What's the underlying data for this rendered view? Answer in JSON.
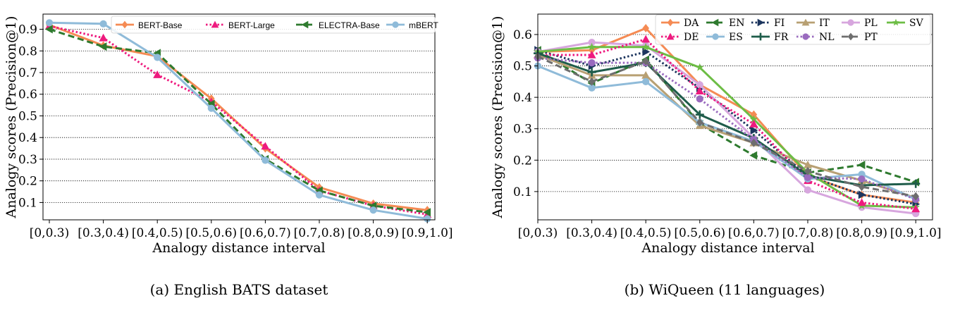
{
  "chart_data": [
    {
      "id": "a",
      "type": "line",
      "caption": "(a) English BATS dataset",
      "xlabel": "Analogy distance interval",
      "ylabel": "Analogy scores (Precision@1)",
      "categories": [
        "[0,0.3)",
        "[0.3,0.4)",
        "[0.4,0.5)",
        "[0.5,0.6)",
        "[0.6,0.7)",
        "[0.7,0.8)",
        "[0.8,0.9)",
        "[0.9,1.0]"
      ],
      "ylim": [
        0.02,
        0.97
      ],
      "yticks": [
        0.1,
        0.2,
        0.3,
        0.4,
        0.5,
        0.6,
        0.7,
        0.8,
        0.9
      ],
      "grid": "horizontal dotted",
      "legend_position": "top, 4 columns",
      "series": [
        {
          "name": "BERT-Base",
          "color": "#f58b54",
          "dash": "solid",
          "marker": "diamond",
          "values": [
            0.92,
            0.825,
            0.775,
            0.58,
            0.35,
            0.17,
            0.095,
            0.065
          ]
        },
        {
          "name": "BERT-Large",
          "color": "#ee1a7e",
          "dash": "dotted",
          "marker": "triangle-up",
          "values": [
            0.915,
            0.86,
            0.69,
            0.565,
            0.36,
            0.155,
            0.085,
            0.045
          ]
        },
        {
          "name": "ELECTRA-Base",
          "color": "#2e7a2e",
          "dash": "dashed",
          "marker": "triangle-left",
          "values": [
            0.9,
            0.82,
            0.79,
            0.555,
            0.3,
            0.155,
            0.085,
            0.055
          ]
        },
        {
          "name": "mBERT",
          "color": "#8fbbd9",
          "dash": "solid",
          "marker": "circle",
          "values": [
            0.93,
            0.925,
            0.77,
            0.535,
            0.295,
            0.135,
            0.065,
            0.025
          ]
        }
      ]
    },
    {
      "id": "b",
      "type": "line",
      "caption": "(b) WiQueen (11 languages)",
      "xlabel": "Analogy distance interval",
      "ylabel": "Analogy scores (Precision@1)",
      "categories": [
        "[0,0.3)",
        "[0.3,0.4)",
        "[0.4,0.5)",
        "[0.5,0.6)",
        "[0.6,0.7)",
        "[0.7,0.8)",
        "[0.8,0.9)",
        "[0.9,1.0]"
      ],
      "ylim": [
        0.01,
        0.665
      ],
      "yticks": [
        0.1,
        0.2,
        0.3,
        0.4,
        0.5,
        0.6
      ],
      "grid": "horizontal dotted",
      "legend_position": "top-right, 6 columns",
      "series": [
        {
          "name": "DA",
          "color": "#f58b54",
          "dash": "solid",
          "marker": "diamond",
          "values": [
            0.545,
            0.55,
            0.62,
            0.44,
            0.345,
            0.15,
            0.09,
            0.065
          ]
        },
        {
          "name": "EN",
          "color": "#2e7a2e",
          "dash": "dashed",
          "marker": "triangle-left",
          "values": [
            0.55,
            0.445,
            0.52,
            0.315,
            0.215,
            0.16,
            0.185,
            0.13
          ]
        },
        {
          "name": "FI",
          "color": "#1c355e",
          "dash": "dotted",
          "marker": "triangle-right",
          "values": [
            0.55,
            0.5,
            0.545,
            0.43,
            0.295,
            0.15,
            0.09,
            0.06
          ]
        },
        {
          "name": "IT",
          "color": "#b8a073",
          "dash": "solid",
          "marker": "triangle-up",
          "values": [
            0.535,
            0.47,
            0.47,
            0.31,
            0.255,
            0.185,
            0.135,
            0.08
          ]
        },
        {
          "name": "PL",
          "color": "#d7a6de",
          "dash": "solid",
          "marker": "circle",
          "values": [
            0.545,
            0.575,
            0.565,
            0.44,
            0.27,
            0.105,
            0.05,
            0.03
          ]
        },
        {
          "name": "SV",
          "color": "#6dbd45",
          "dash": "solid",
          "marker": "star",
          "values": [
            0.545,
            0.56,
            0.56,
            0.495,
            0.33,
            0.16,
            0.055,
            0.05
          ]
        },
        {
          "name": "DE",
          "color": "#ee1a7e",
          "dash": "dotted",
          "marker": "triangle-up",
          "values": [
            0.535,
            0.535,
            0.585,
            0.42,
            0.315,
            0.135,
            0.065,
            0.045
          ]
        },
        {
          "name": "ES",
          "color": "#8fbbd9",
          "dash": "solid",
          "marker": "circle",
          "values": [
            0.5,
            0.43,
            0.45,
            0.32,
            0.26,
            0.14,
            0.155,
            0.075
          ]
        },
        {
          "name": "FR",
          "color": "#1e5c4a",
          "dash": "solid",
          "marker": "plus",
          "values": [
            0.54,
            0.48,
            0.51,
            0.345,
            0.27,
            0.15,
            0.12,
            0.125
          ]
        },
        {
          "name": "NL",
          "color": "#9a6bbf",
          "dash": "dotted",
          "marker": "circle",
          "values": [
            0.525,
            0.51,
            0.51,
            0.395,
            0.265,
            0.145,
            0.14,
            0.075
          ]
        },
        {
          "name": "PT",
          "color": "#6e6e6e",
          "dash": "dashed",
          "marker": "diamond",
          "values": [
            0.53,
            0.45,
            0.515,
            0.32,
            0.255,
            0.165,
            0.115,
            0.085
          ]
        }
      ]
    }
  ]
}
